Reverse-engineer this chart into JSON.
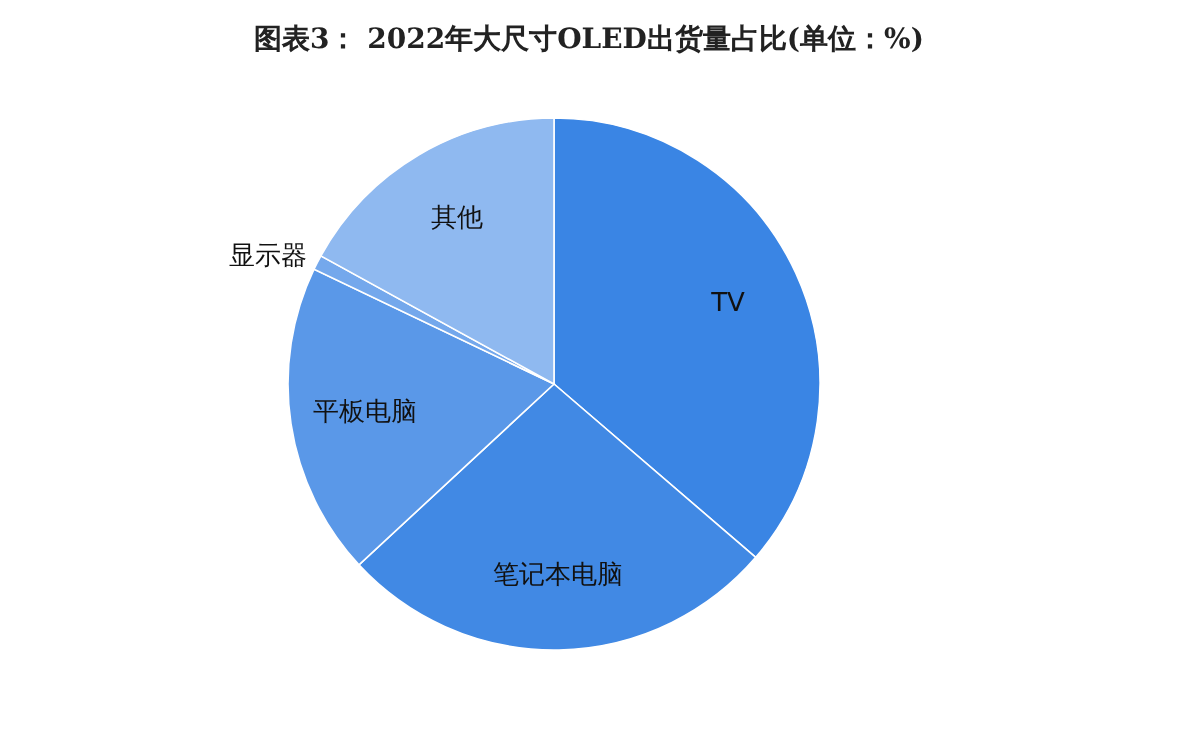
{
  "chart_data": {
    "type": "pie",
    "title": "图表3： 2022年大尺寸OLED出货量占比(单位：%)",
    "categories": [
      "TV",
      "笔记本电脑",
      "平板电脑",
      "显示器",
      "其他"
    ],
    "values": [
      36.3,
      26.8,
      19.0,
      0.9,
      17.0
    ],
    "colors": [
      "#3a85e4",
      "#4189e4",
      "#5a98e8",
      "#74a8ec",
      "#8fb9f0"
    ]
  }
}
